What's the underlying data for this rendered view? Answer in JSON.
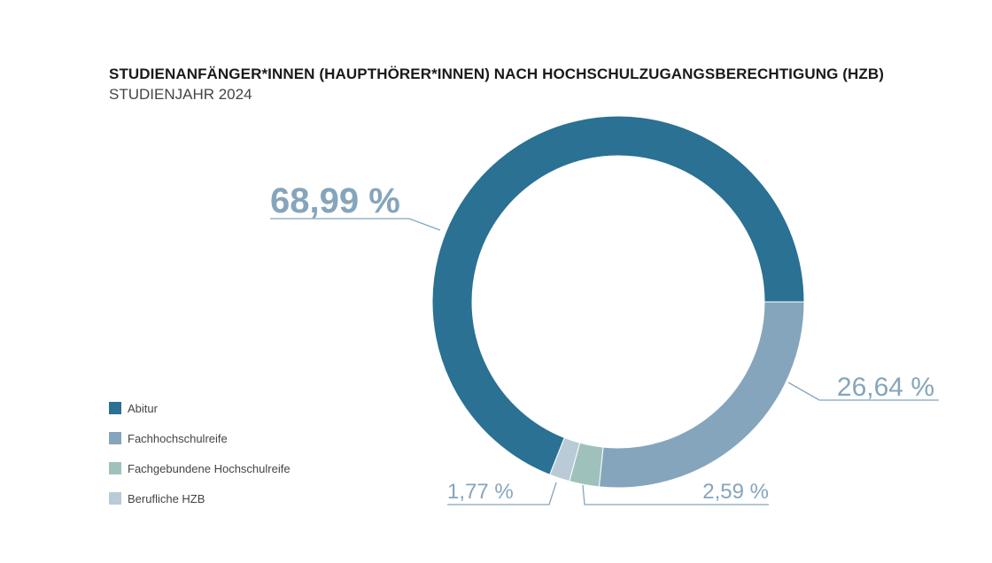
{
  "title": "STUDIENANFÄNGER*INNEN (HAUPTHÖRER*INNEN) NACH HOCHSCHULZUGANGSBERECHTIGUNG (HZB)",
  "subtitle": "STUDIENJAHR 2024",
  "chart_data": {
    "type": "pie",
    "variant": "donut",
    "title": "STUDIENANFÄNGER*INNEN (HAUPTHÖRER*INNEN) NACH HOCHSCHULZUGANGSBERECHTIGUNG (HZB)",
    "subtitle": "STUDIENJAHR 2024",
    "legend_position": "bottom-left",
    "slices": [
      {
        "name": "Fachhochschulreife",
        "value": 26.64,
        "label": "26,64 %",
        "color": "#85a5bc"
      },
      {
        "name": "Fachgebundene Hochschulreife",
        "value": 2.59,
        "label": "2,59 %",
        "color": "#9fc1bc"
      },
      {
        "name": "Berufliche HZB",
        "value": 1.77,
        "label": "1,77 %",
        "color": "#b9cbd6"
      },
      {
        "name": "Abitur",
        "value": 68.99,
        "label": "68,99 %",
        "color": "#2a7193"
      }
    ],
    "legend_order": [
      "Abitur",
      "Fachhochschulreife",
      "Fachgebundene Hochschulreife",
      "Berufliche HZB"
    ]
  },
  "label_color": "#85a5bc"
}
